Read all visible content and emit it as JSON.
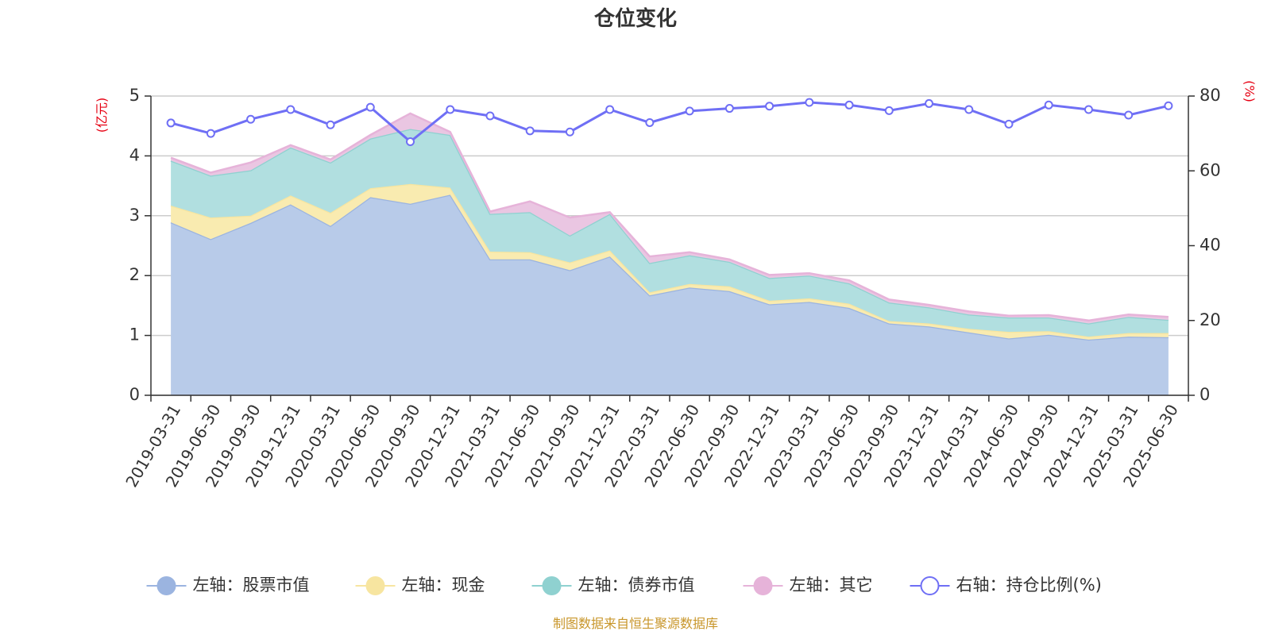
{
  "chart_data": {
    "type": "area",
    "title": "仓位变化",
    "y_left_unit": "(亿元)",
    "y_right_unit": "(%)",
    "ylim_left": [
      0,
      5
    ],
    "ylim_right": [
      0,
      80
    ],
    "yticks_left": [
      "0",
      "1",
      "2",
      "3",
      "4",
      "5"
    ],
    "yticks_right": [
      "0",
      "20",
      "40",
      "60",
      "80"
    ],
    "stacked": true,
    "grid": true,
    "legend_position": "bottom",
    "categories": [
      "2019-03-31",
      "2019-06-30",
      "2019-09-30",
      "2019-12-31",
      "2020-03-31",
      "2020-06-30",
      "2020-09-30",
      "2020-12-31",
      "2021-03-31",
      "2021-06-30",
      "2021-09-30",
      "2021-12-31",
      "2022-03-31",
      "2022-06-30",
      "2022-09-30",
      "2022-12-31",
      "2023-03-31",
      "2023-06-30",
      "2023-09-30",
      "2023-12-31",
      "2024-03-31",
      "2024-06-30",
      "2024-09-30",
      "2024-12-31",
      "2025-03-31",
      "2025-06-30"
    ],
    "series": [
      {
        "name": "左轴：股票市值",
        "axis": "left",
        "color": "#9bb4e0",
        "fill": "#b8cbe9",
        "values": [
          2.89,
          2.61,
          2.88,
          3.19,
          2.83,
          3.31,
          3.2,
          3.35,
          2.27,
          2.27,
          2.09,
          2.32,
          1.67,
          1.8,
          1.74,
          1.52,
          1.56,
          1.46,
          1.2,
          1.15,
          1.05,
          0.95,
          1.01,
          0.93,
          0.98,
          0.97
        ]
      },
      {
        "name": "左轴：现金",
        "axis": "left",
        "color": "#f7e5a0",
        "fill": "#f9ebb0",
        "values": [
          0.28,
          0.36,
          0.12,
          0.15,
          0.22,
          0.15,
          0.33,
          0.12,
          0.13,
          0.12,
          0.13,
          0.1,
          0.05,
          0.06,
          0.08,
          0.06,
          0.06,
          0.07,
          0.04,
          0.05,
          0.06,
          0.11,
          0.06,
          0.05,
          0.06,
          0.07
        ]
      },
      {
        "name": "左轴：债券市值",
        "axis": "left",
        "color": "#8fd1d0",
        "fill": "#b1dfe0",
        "values": [
          0.75,
          0.7,
          0.76,
          0.8,
          0.84,
          0.83,
          0.92,
          0.88,
          0.63,
          0.67,
          0.45,
          0.61,
          0.49,
          0.48,
          0.41,
          0.38,
          0.38,
          0.34,
          0.31,
          0.27,
          0.24,
          0.24,
          0.23,
          0.22,
          0.27,
          0.22
        ]
      },
      {
        "name": "左轴：其它",
        "axis": "left",
        "color": "#e6b3d9",
        "fill": "#eac6e2",
        "values": [
          0.05,
          0.05,
          0.13,
          0.04,
          0.05,
          0.06,
          0.26,
          0.05,
          0.04,
          0.18,
          0.3,
          0.03,
          0.11,
          0.05,
          0.04,
          0.05,
          0.04,
          0.05,
          0.05,
          0.04,
          0.05,
          0.03,
          0.04,
          0.05,
          0.04,
          0.05
        ]
      },
      {
        "name": "右轴：持仓比例(%)",
        "axis": "right",
        "color": "#6f6ff5",
        "values": [
          72.8,
          70.0,
          73.8,
          76.4,
          72.3,
          77.0,
          67.8,
          76.4,
          74.7,
          70.7,
          70.4,
          76.4,
          72.9,
          76.0,
          76.7,
          77.3,
          78.3,
          77.6,
          76.1,
          78.0,
          76.4,
          72.5,
          77.6,
          76.4,
          74.9,
          77.4
        ]
      }
    ]
  },
  "footer": {
    "source": "制图数据来自恒生聚源数据库"
  }
}
